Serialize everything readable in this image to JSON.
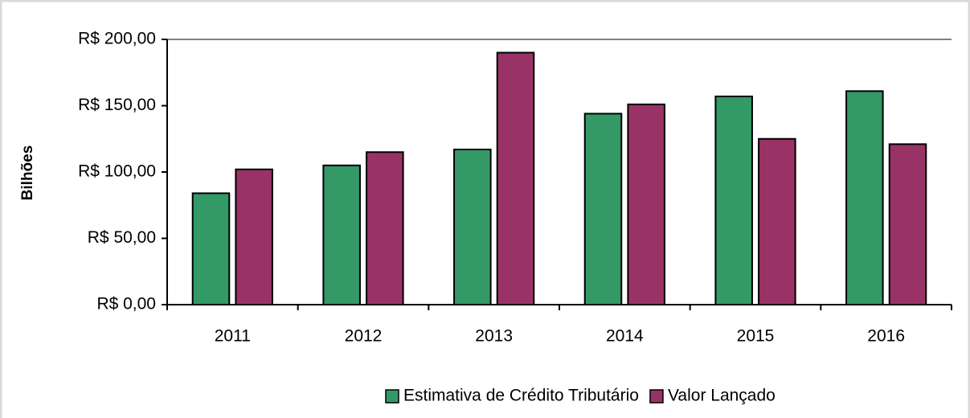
{
  "chart_data": {
    "type": "bar",
    "y_label": "Bilhões",
    "categories": [
      "2011",
      "2012",
      "2013",
      "2014",
      "2015",
      "2016"
    ],
    "series": [
      {
        "name": "Estimativa de Crédito Tributário",
        "color": "#339966",
        "values": [
          84,
          105,
          117,
          144,
          157,
          161
        ]
      },
      {
        "name": "Valor Lançado",
        "color": "#993366",
        "values": [
          102,
          115,
          190,
          151,
          125,
          121
        ]
      }
    ],
    "ylim": [
      0,
      200
    ],
    "yticks": [
      {
        "value": 0,
        "label": "R$ 0,00"
      },
      {
        "value": 50,
        "label": "R$ 50,00"
      },
      {
        "value": 100,
        "label": "R$ 100,00"
      },
      {
        "value": 150,
        "label": "R$ 150,00"
      },
      {
        "value": 200,
        "label": "R$ 200,00"
      }
    ],
    "legend": "bottom"
  }
}
